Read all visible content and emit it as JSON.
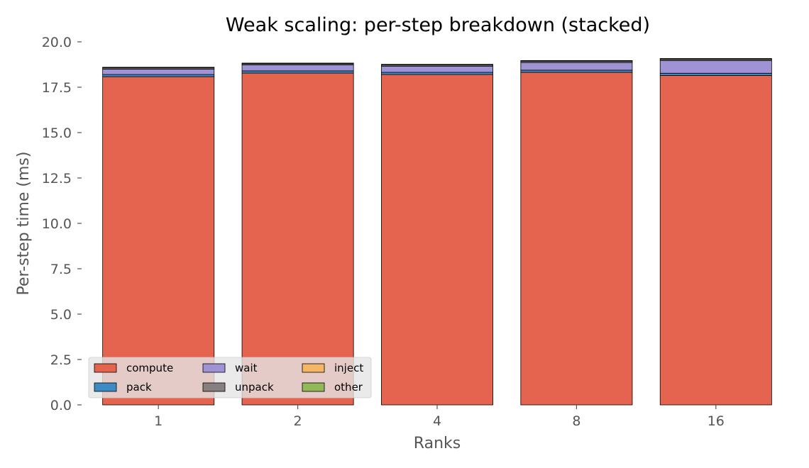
{
  "chart_data": {
    "type": "bar",
    "stacked": true,
    "title": "Weak scaling: per-step breakdown (stacked)",
    "xlabel": "Ranks",
    "ylabel": "Per-step time (ms)",
    "categories": [
      "1",
      "2",
      "4",
      "8",
      "16"
    ],
    "ylim": [
      0,
      20
    ],
    "yticks": [
      "0.0",
      "2.5",
      "5.0",
      "7.5",
      "10.0",
      "12.5",
      "15.0",
      "17.5",
      "20.0"
    ],
    "grid": false,
    "legend_position": "lower-left",
    "legend_columns": 3,
    "series": [
      {
        "name": "compute",
        "color": "#E5644F",
        "values": [
          18.08,
          18.28,
          18.2,
          18.32,
          18.15
        ]
      },
      {
        "name": "pack",
        "color": "#3E8BC4",
        "values": [
          0.12,
          0.12,
          0.12,
          0.12,
          0.12
        ]
      },
      {
        "name": "wait",
        "color": "#9F93D6",
        "values": [
          0.3,
          0.33,
          0.34,
          0.42,
          0.7
        ]
      },
      {
        "name": "unpack",
        "color": "#888080",
        "values": [
          0.07,
          0.07,
          0.07,
          0.08,
          0.08
        ]
      },
      {
        "name": "inject",
        "color": "#F5B765",
        "values": [
          0.01,
          0.01,
          0.01,
          0.01,
          0.01
        ]
      },
      {
        "name": "other",
        "color": "#93B85A",
        "values": [
          0.02,
          0.02,
          0.02,
          0.02,
          0.02
        ]
      }
    ]
  }
}
